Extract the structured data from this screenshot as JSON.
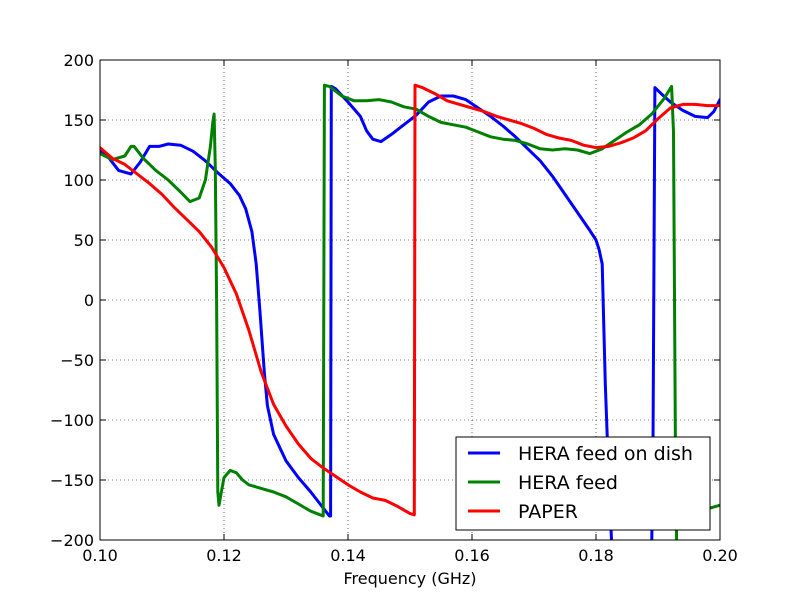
{
  "chart_data": {
    "type": "line",
    "title": "",
    "xlabel": "Frequency (GHz)",
    "ylabel": "",
    "xlim": [
      0.1,
      0.2
    ],
    "ylim": [
      -200,
      200
    ],
    "x_ticks": [
      0.1,
      0.12,
      0.14,
      0.16,
      0.18,
      0.2
    ],
    "x_tick_labels": [
      "0.10",
      "0.12",
      "0.14",
      "0.16",
      "0.18",
      "0.20"
    ],
    "y_ticks": [
      -200,
      -150,
      -100,
      -50,
      0,
      50,
      100,
      150,
      200
    ],
    "y_tick_labels": [
      "−200",
      "−150",
      "−100",
      "−50",
      "0",
      "50",
      "100",
      "150",
      "200"
    ],
    "grid": true,
    "legend_position": "lower-right",
    "series": [
      {
        "name": "HERA feed on dish",
        "color": "#0000ff",
        "points": [
          [
            0.1,
            125
          ],
          [
            0.1015,
            118
          ],
          [
            0.103,
            108
          ],
          [
            0.105,
            105
          ],
          [
            0.1065,
            115
          ],
          [
            0.108,
            128
          ],
          [
            0.1095,
            128
          ],
          [
            0.111,
            130
          ],
          [
            0.113,
            129
          ],
          [
            0.115,
            124
          ],
          [
            0.117,
            116
          ],
          [
            0.119,
            106
          ],
          [
            0.121,
            97
          ],
          [
            0.1225,
            87
          ],
          [
            0.1235,
            76
          ],
          [
            0.1245,
            57
          ],
          [
            0.1252,
            30
          ],
          [
            0.1258,
            -10
          ],
          [
            0.1265,
            -60
          ],
          [
            0.127,
            -88
          ],
          [
            0.128,
            -112
          ],
          [
            0.13,
            -134
          ],
          [
            0.132,
            -148
          ],
          [
            0.134,
            -160
          ],
          [
            0.1355,
            -170
          ],
          [
            0.137,
            -180
          ],
          [
            0.1372,
            -180
          ],
          [
            0.1373,
            178
          ],
          [
            0.138,
            176
          ],
          [
            0.14,
            165
          ],
          [
            0.142,
            153
          ],
          [
            0.143,
            141
          ],
          [
            0.144,
            134
          ],
          [
            0.1453,
            132
          ],
          [
            0.147,
            138
          ],
          [
            0.149,
            146
          ],
          [
            0.151,
            154
          ],
          [
            0.153,
            165
          ],
          [
            0.155,
            170
          ],
          [
            0.157,
            170
          ],
          [
            0.159,
            167
          ],
          [
            0.161,
            160
          ],
          [
            0.163,
            153
          ],
          [
            0.165,
            145
          ],
          [
            0.167,
            136
          ],
          [
            0.169,
            126
          ],
          [
            0.171,
            116
          ],
          [
            0.173,
            103
          ],
          [
            0.175,
            88
          ],
          [
            0.177,
            73
          ],
          [
            0.179,
            58
          ],
          [
            0.18,
            50
          ],
          [
            0.1805,
            42
          ],
          [
            0.181,
            30
          ],
          [
            0.1815,
            -70
          ],
          [
            0.182,
            -140
          ],
          [
            0.1825,
            -200
          ]
        ],
        "points_b": [
          [
            0.189,
            -200
          ],
          [
            0.1892,
            -120
          ],
          [
            0.1895,
            177
          ],
          [
            0.1905,
            172
          ],
          [
            0.192,
            165
          ],
          [
            0.194,
            158
          ],
          [
            0.196,
            153
          ],
          [
            0.198,
            152
          ],
          [
            0.199,
            157
          ],
          [
            0.2,
            167
          ]
        ]
      },
      {
        "name": "HERA feed",
        "color": "#008000",
        "points": [
          [
            0.1,
            122
          ],
          [
            0.102,
            117
          ],
          [
            0.104,
            120
          ],
          [
            0.105,
            128
          ],
          [
            0.1055,
            128
          ],
          [
            0.107,
            118
          ],
          [
            0.109,
            108
          ],
          [
            0.111,
            100
          ],
          [
            0.113,
            90
          ],
          [
            0.1145,
            82
          ],
          [
            0.116,
            85
          ],
          [
            0.117,
            100
          ],
          [
            0.1178,
            128
          ],
          [
            0.1182,
            148
          ],
          [
            0.1184,
            155
          ],
          [
            0.1186,
            110
          ],
          [
            0.1188,
            0
          ],
          [
            0.119,
            -160
          ],
          [
            0.1192,
            -171
          ],
          [
            0.1195,
            -162
          ],
          [
            0.12,
            -148
          ],
          [
            0.121,
            -142
          ],
          [
            0.122,
            -144
          ],
          [
            0.123,
            -150
          ],
          [
            0.124,
            -154
          ],
          [
            0.126,
            -157
          ],
          [
            0.128,
            -160
          ],
          [
            0.13,
            -164
          ],
          [
            0.132,
            -170
          ],
          [
            0.134,
            -176
          ],
          [
            0.1355,
            -179
          ],
          [
            0.136,
            -180
          ],
          [
            0.1362,
            179
          ],
          [
            0.137,
            178
          ],
          [
            0.139,
            170
          ],
          [
            0.141,
            166
          ],
          [
            0.143,
            166
          ],
          [
            0.145,
            167
          ],
          [
            0.147,
            165
          ],
          [
            0.149,
            161
          ],
          [
            0.151,
            159
          ],
          [
            0.153,
            153
          ],
          [
            0.155,
            148
          ],
          [
            0.157,
            146
          ],
          [
            0.159,
            144
          ],
          [
            0.161,
            140
          ],
          [
            0.163,
            136
          ],
          [
            0.165,
            134
          ],
          [
            0.167,
            133
          ],
          [
            0.169,
            130
          ],
          [
            0.171,
            126
          ],
          [
            0.173,
            125
          ],
          [
            0.175,
            126
          ],
          [
            0.177,
            125
          ],
          [
            0.179,
            122
          ],
          [
            0.181,
            126
          ],
          [
            0.183,
            133
          ],
          [
            0.185,
            140
          ],
          [
            0.187,
            146
          ],
          [
            0.189,
            155
          ],
          [
            0.191,
            168
          ],
          [
            0.1922,
            178
          ],
          [
            0.1925,
            140
          ],
          [
            0.1928,
            -120
          ],
          [
            0.193,
            -200
          ]
        ],
        "points_b": [
          [
            0.1965,
            -178
          ],
          [
            0.198,
            -174
          ],
          [
            0.2,
            -171
          ]
        ]
      },
      {
        "name": "PAPER",
        "color": "#ff0000",
        "points": [
          [
            0.1,
            127
          ],
          [
            0.102,
            118
          ],
          [
            0.104,
            113
          ],
          [
            0.106,
            105
          ],
          [
            0.108,
            97
          ],
          [
            0.11,
            88
          ],
          [
            0.112,
            77
          ],
          [
            0.114,
            67
          ],
          [
            0.116,
            57
          ],
          [
            0.118,
            44
          ],
          [
            0.12,
            27
          ],
          [
            0.122,
            5
          ],
          [
            0.124,
            -25
          ],
          [
            0.126,
            -60
          ],
          [
            0.128,
            -87
          ],
          [
            0.13,
            -105
          ],
          [
            0.132,
            -120
          ],
          [
            0.134,
            -132
          ],
          [
            0.136,
            -140
          ],
          [
            0.138,
            -147
          ],
          [
            0.14,
            -154
          ],
          [
            0.142,
            -160
          ],
          [
            0.144,
            -165
          ],
          [
            0.146,
            -167
          ],
          [
            0.148,
            -172
          ],
          [
            0.15,
            -178
          ],
          [
            0.1507,
            -179
          ],
          [
            0.1508,
            179
          ],
          [
            0.152,
            177
          ],
          [
            0.154,
            172
          ],
          [
            0.156,
            166
          ],
          [
            0.158,
            163
          ],
          [
            0.16,
            160
          ],
          [
            0.162,
            157
          ],
          [
            0.164,
            153
          ],
          [
            0.166,
            150
          ],
          [
            0.168,
            147
          ],
          [
            0.17,
            143
          ],
          [
            0.172,
            138
          ],
          [
            0.174,
            135
          ],
          [
            0.176,
            133
          ],
          [
            0.178,
            129
          ],
          [
            0.18,
            127
          ],
          [
            0.182,
            128
          ],
          [
            0.184,
            131
          ],
          [
            0.186,
            135
          ],
          [
            0.188,
            141
          ],
          [
            0.19,
            151
          ],
          [
            0.192,
            160
          ],
          [
            0.194,
            163
          ],
          [
            0.196,
            163
          ],
          [
            0.198,
            162
          ],
          [
            0.2,
            162
          ]
        ]
      }
    ]
  }
}
